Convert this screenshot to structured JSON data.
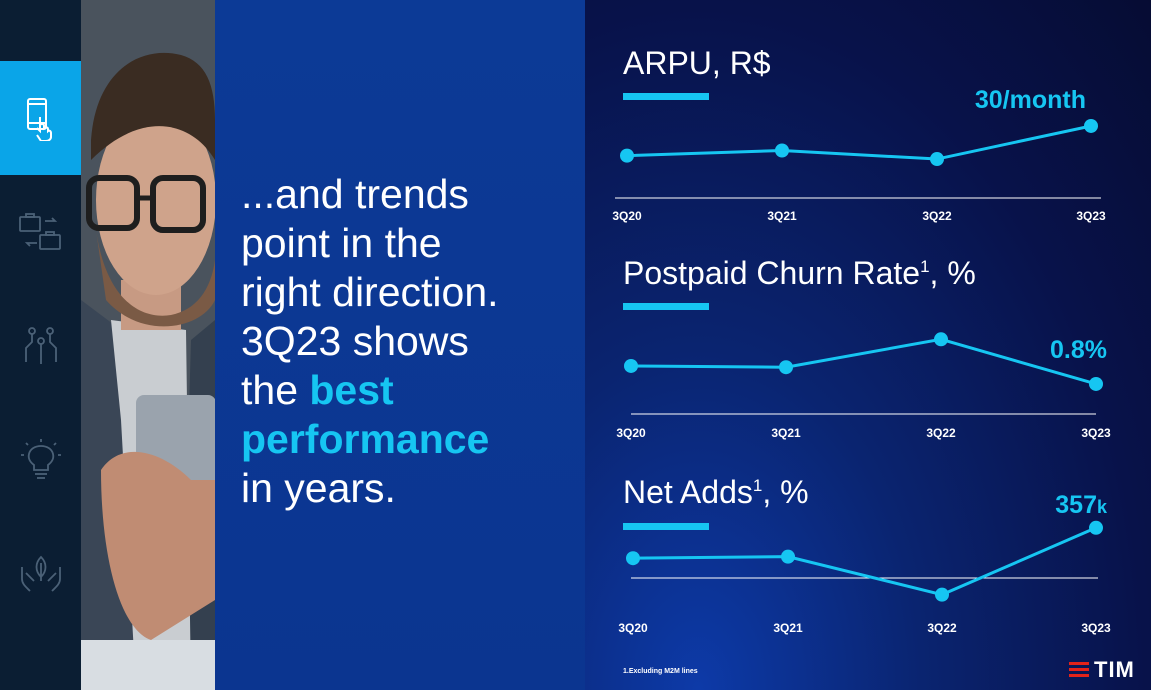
{
  "sidebar": {
    "items": [
      {
        "icon": "mobile-touch-icon",
        "active": true
      },
      {
        "icon": "briefcase-exchange-icon",
        "active": false
      },
      {
        "icon": "network-nodes-icon",
        "active": false
      },
      {
        "icon": "lightbulb-icon",
        "active": false
      },
      {
        "icon": "hands-leaf-icon",
        "active": false
      }
    ]
  },
  "headline": {
    "line1": "...and trends",
    "line2": "point in the",
    "line3": "right direction.",
    "line4": "3Q23 shows",
    "line5_pre": "the ",
    "line5_hl": "best",
    "line6_hl": "performance",
    "line7": "in years."
  },
  "colors": {
    "accent": "#16c6f2",
    "headline_text": "#ffffff",
    "logo_red": "#e2231a"
  },
  "chart_data": [
    {
      "type": "line",
      "title": "ARPU, R$",
      "title_sup": "",
      "categories": [
        "3Q20",
        "3Q21",
        "3Q22",
        "3Q23"
      ],
      "values": [
        0.34,
        0.43,
        0.28,
        0.86
      ],
      "callout": "30/month",
      "callout_unit": ""
    },
    {
      "type": "line",
      "title": "Postpaid Churn Rate",
      "title_sup": "1",
      "title_suffix": ", %",
      "categories": [
        "3Q20",
        "3Q21",
        "3Q22",
        "3Q23"
      ],
      "values": [
        0.42,
        0.4,
        0.85,
        0.13
      ],
      "callout": "0.8%",
      "callout_unit": ""
    },
    {
      "type": "line",
      "title": "Net Adds",
      "title_sup": "1",
      "title_suffix": ", %",
      "categories": [
        "3Q20",
        "3Q21",
        "3Q22",
        "3Q23"
      ],
      "values": [
        0.55,
        0.57,
        0.07,
        0.95
      ],
      "callout": "357",
      "callout_unit": "k"
    }
  ],
  "footnote": "1.Excluding M2M lines",
  "logo_text": "TIM"
}
